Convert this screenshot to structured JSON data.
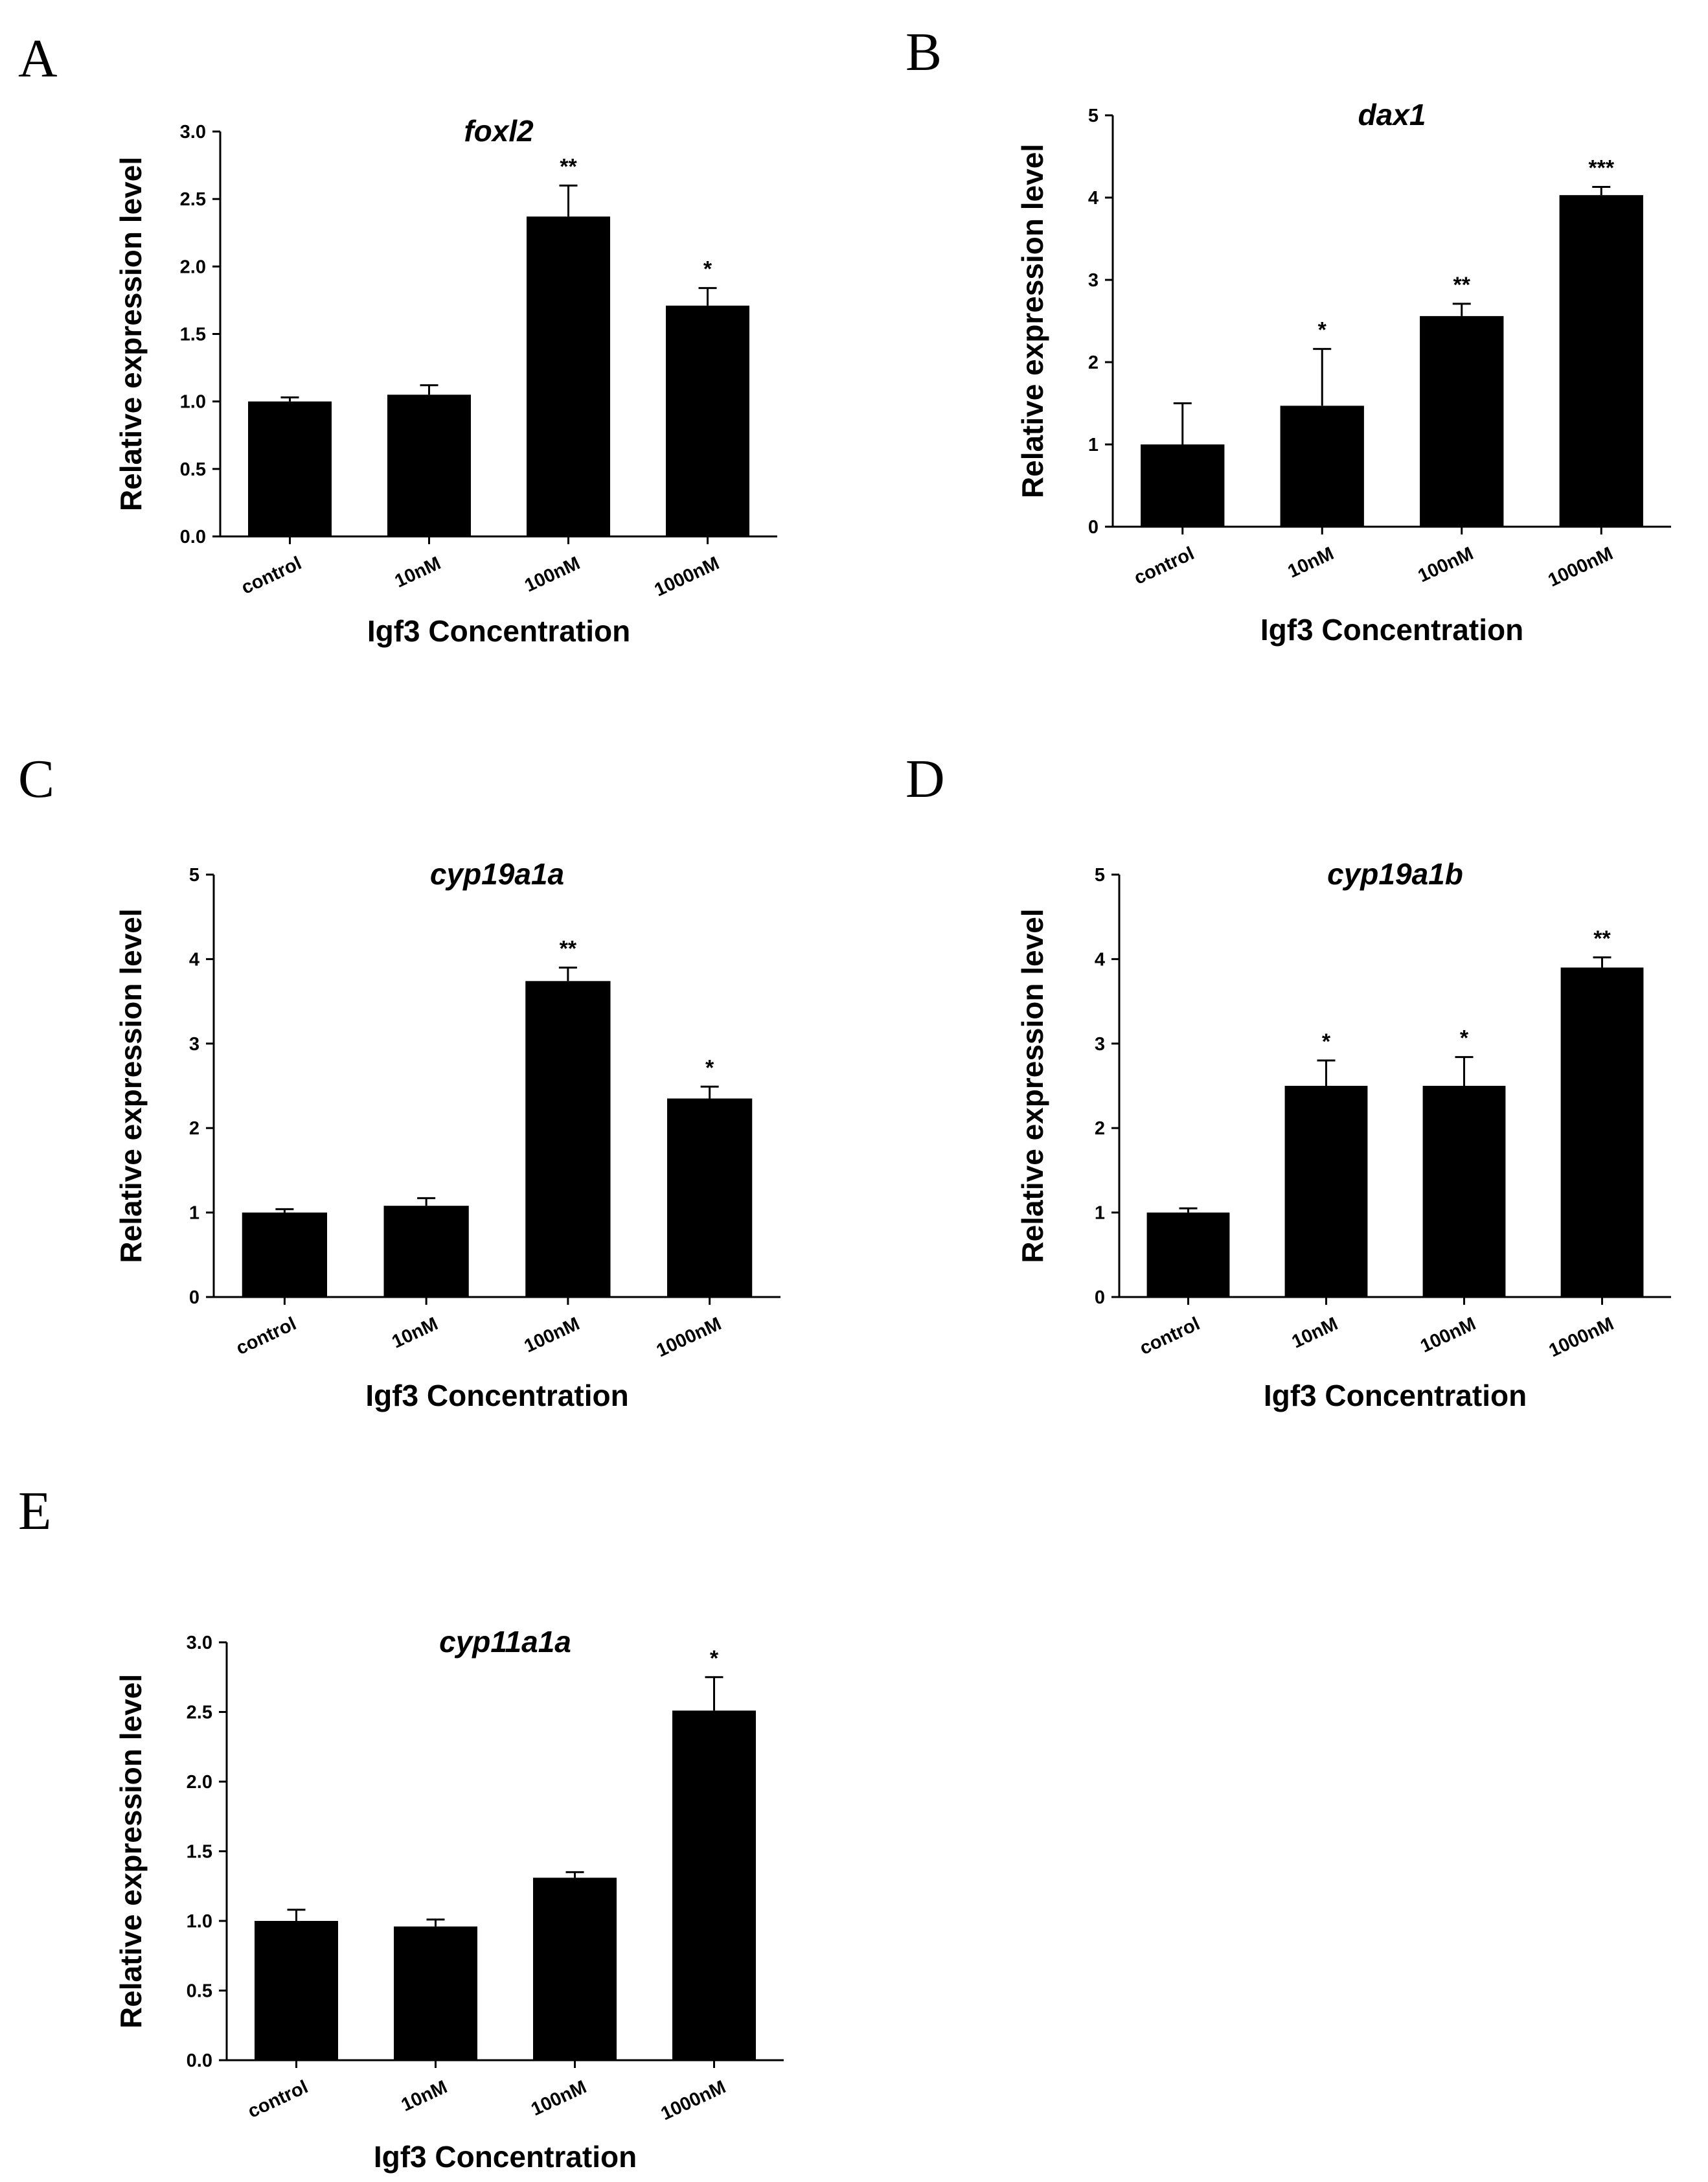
{
  "figure": {
    "colors": {
      "bar": "#000000",
      "axis": "#000000",
      "background": "#ffffff"
    }
  },
  "chart_data": [
    {
      "panel": "A",
      "type": "bar",
      "title": "foxl2",
      "xlabel": "Igf3 Concentration",
      "ylabel": "Relative expression level",
      "categories": [
        "control",
        "10nM",
        "100nM",
        "1000nM"
      ],
      "values": [
        1.0,
        1.05,
        2.37,
        1.71
      ],
      "errors": [
        0.03,
        0.07,
        0.23,
        0.13
      ],
      "significance": [
        "",
        "",
        "**",
        "*"
      ],
      "ylim": [
        0,
        3.0
      ],
      "yticks": [
        0,
        0.5,
        1.0,
        1.5,
        2.0,
        2.5,
        3.0
      ],
      "ytick_labels": [
        "0.0",
        "0.5",
        "1.0",
        "1.5",
        "2.0",
        "2.5",
        "3.0"
      ]
    },
    {
      "panel": "B",
      "type": "bar",
      "title": "dax1",
      "xlabel": "Igf3 Concentration",
      "ylabel": "Relative expression level",
      "categories": [
        "control",
        "10nM",
        "100nM",
        "1000nM"
      ],
      "values": [
        1.0,
        1.47,
        2.56,
        4.03
      ],
      "errors": [
        0.5,
        0.69,
        0.15,
        0.1
      ],
      "significance": [
        "",
        "*",
        "**",
        "***"
      ],
      "ylim": [
        0,
        5
      ],
      "yticks": [
        0,
        1,
        2,
        3,
        4,
        5
      ],
      "ytick_labels": [
        "0",
        "1",
        "2",
        "3",
        "4",
        "5"
      ]
    },
    {
      "panel": "C",
      "type": "bar",
      "title": "cyp19a1a",
      "xlabel": "Igf3 Concentration",
      "ylabel": "Relative expression level",
      "categories": [
        "control",
        "10nM",
        "100nM",
        "1000nM"
      ],
      "values": [
        1.0,
        1.08,
        3.74,
        2.35
      ],
      "errors": [
        0.04,
        0.09,
        0.16,
        0.14
      ],
      "significance": [
        "",
        "",
        "**",
        "*"
      ],
      "ylim": [
        0,
        5
      ],
      "yticks": [
        0,
        1,
        2,
        3,
        4,
        5
      ],
      "ytick_labels": [
        "0",
        "1",
        "2",
        "3",
        "4",
        "5"
      ]
    },
    {
      "panel": "D",
      "type": "bar",
      "title": "cyp19a1b",
      "xlabel": "Igf3 Concentration",
      "ylabel": "Relative expression level",
      "categories": [
        "control",
        "10nM",
        "100nM",
        "1000nM"
      ],
      "values": [
        1.0,
        2.5,
        2.5,
        3.9
      ],
      "errors": [
        0.05,
        0.3,
        0.34,
        0.12
      ],
      "significance": [
        "",
        "*",
        "*",
        "**"
      ],
      "ylim": [
        0,
        5
      ],
      "yticks": [
        0,
        1,
        2,
        3,
        4,
        5
      ],
      "ytick_labels": [
        "0",
        "1",
        "2",
        "3",
        "4",
        "5"
      ]
    },
    {
      "panel": "E",
      "type": "bar",
      "title": "cyp11a1a",
      "xlabel": "Igf3 Concentration",
      "ylabel": "Relative expression level",
      "categories": [
        "control",
        "10nM",
        "100nM",
        "1000nM"
      ],
      "values": [
        1.0,
        0.96,
        1.31,
        2.51
      ],
      "errors": [
        0.08,
        0.05,
        0.04,
        0.24
      ],
      "significance": [
        "",
        "",
        "",
        "*"
      ],
      "ylim": [
        0,
        3.0
      ],
      "yticks": [
        0,
        0.5,
        1.0,
        1.5,
        2.0,
        2.5,
        3.0
      ],
      "ytick_labels": [
        "0.0",
        "0.5",
        "1.0",
        "1.5",
        "2.0",
        "2.5",
        "3.0"
      ]
    }
  ]
}
